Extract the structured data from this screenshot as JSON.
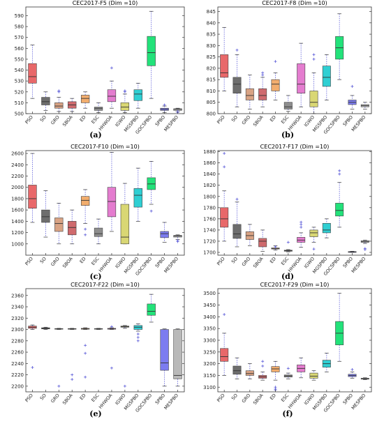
{
  "chart_data": [
    {
      "type": "box",
      "title": "CEC2017-F5 (Dim =10)",
      "sublabel": "(a)",
      "categories": [
        "PSO",
        "SO",
        "GRO",
        "SBOA",
        "ED",
        "ESC",
        "HHWOA",
        "IGWO",
        "MGSPBO",
        "GOCSPBO",
        "SPBO",
        "MESPBO"
      ],
      "colors": [
        "#e8686a",
        "#6e6e6e",
        "#d9a384",
        "#cf6a6e",
        "#f2ad6e",
        "#8e8e8e",
        "#e47ccf",
        "#d9d774",
        "#2fcfd3",
        "#22e27a",
        "#7c7cf0",
        "#b9b9b9"
      ],
      "ylim": [
        500,
        598
      ],
      "yticks": [
        500,
        510,
        520,
        530,
        540,
        550,
        560,
        570,
        580,
        590
      ],
      "boxes": [
        {
          "q1": 528,
          "median": 534,
          "q3": 546,
          "wlo": 514,
          "whi": 563,
          "outliers": []
        },
        {
          "q1": 508,
          "median": 511,
          "q3": 515,
          "wlo": 503,
          "whi": 520,
          "outliers": []
        },
        {
          "q1": 505,
          "median": 507,
          "q3": 510,
          "wlo": 502,
          "whi": 515,
          "outliers": [
            520,
            521
          ]
        },
        {
          "q1": 505,
          "median": 508,
          "q3": 511,
          "wlo": 502,
          "whi": 514,
          "outliers": []
        },
        {
          "q1": 510,
          "median": 514,
          "q3": 517,
          "wlo": 505,
          "whi": 520,
          "outliers": []
        },
        {
          "q1": 503,
          "median": 505,
          "q3": 506,
          "wlo": 501,
          "whi": 510,
          "outliers": []
        },
        {
          "q1": 511,
          "median": 516,
          "q3": 522,
          "wlo": 505,
          "whi": 530,
          "outliers": [
            542
          ]
        },
        {
          "q1": 503,
          "median": 506,
          "q3": 510,
          "wlo": 501,
          "whi": 518,
          "outliers": [
            520,
            521
          ]
        },
        {
          "q1": 512,
          "median": 518,
          "q3": 522,
          "wlo": 505,
          "whi": 528,
          "outliers": []
        },
        {
          "q1": 544,
          "median": 556,
          "q3": 571,
          "wlo": 514,
          "whi": 594,
          "outliers": []
        },
        {
          "q1": 503,
          "median": 504,
          "q3": 505,
          "wlo": 501,
          "whi": 507,
          "outliers": [
            508
          ]
        },
        {
          "q1": 503,
          "median": 504,
          "q3": 504.5,
          "wlo": 502,
          "whi": 505,
          "outliers": [
            501,
            502
          ]
        }
      ]
    },
    {
      "type": "box",
      "title": "CEC2017-F8 (Dim =10)",
      "sublabel": "(b)",
      "categories": [
        "PSO",
        "SO",
        "GRO",
        "SBOA",
        "ED",
        "ESC",
        "HHWOA",
        "IGWO",
        "MGSPBO",
        "GOCSPBO",
        "SPBO",
        "MESPBO"
      ],
      "colors": [
        "#e8686a",
        "#6e6e6e",
        "#d9a384",
        "#cf6a6e",
        "#f2ad6e",
        "#8e8e8e",
        "#e47ccf",
        "#d9d774",
        "#2fcfd3",
        "#22e27a",
        "#7c7cf0",
        "#b9b9b9"
      ],
      "ylim": [
        800,
        847
      ],
      "yticks": [
        800,
        805,
        810,
        815,
        820,
        825,
        830,
        835,
        840,
        845
      ],
      "boxes": [
        {
          "q1": 816,
          "median": 818,
          "q3": 826,
          "wlo": 810,
          "whi": 838,
          "outliers": []
        },
        {
          "q1": 809,
          "median": 813,
          "q3": 816,
          "wlo": 803,
          "whi": 826,
          "outliers": [
            828
          ]
        },
        {
          "q1": 806,
          "median": 808,
          "q3": 811,
          "wlo": 802,
          "whi": 817,
          "outliers": []
        },
        {
          "q1": 806,
          "median": 808,
          "q3": 811,
          "wlo": 803,
          "whi": 816,
          "outliers": [
            817,
            818
          ]
        },
        {
          "q1": 810,
          "median": 813,
          "q3": 815,
          "wlo": 806,
          "whi": 818,
          "outliers": [
            823
          ]
        },
        {
          "q1": 802,
          "median": 803,
          "q3": 805,
          "wlo": 801,
          "whi": 808,
          "outliers": []
        },
        {
          "q1": 809,
          "median": 813,
          "q3": 822,
          "wlo": 803,
          "whi": 831,
          "outliers": []
        },
        {
          "q1": 803,
          "median": 805,
          "q3": 810,
          "wlo": 800,
          "whi": 818,
          "outliers": [
            824,
            826
          ]
        },
        {
          "q1": 812,
          "median": 816,
          "q3": 821,
          "wlo": 806,
          "whi": 826,
          "outliers": []
        },
        {
          "q1": 824,
          "median": 829,
          "q3": 834,
          "wlo": 815,
          "whi": 844,
          "outliers": []
        },
        {
          "q1": 804,
          "median": 805,
          "q3": 806,
          "wlo": 802,
          "whi": 808,
          "outliers": [
            812
          ]
        },
        {
          "q1": 803,
          "median": 803.5,
          "q3": 804,
          "wlo": 802,
          "whi": 805,
          "outliers": []
        }
      ]
    },
    {
      "type": "box",
      "title": "CEC2017-F10 (Dim =10)",
      "sublabel": "(c)",
      "categories": [
        "PSO",
        "SO",
        "GRO",
        "SBOA",
        "ED",
        "ESC",
        "HHWOA",
        "IGWO",
        "MGSPBO",
        "GOCSPBO",
        "SPBO",
        "MESPBO"
      ],
      "colors": [
        "#e8686a",
        "#6e6e6e",
        "#d9a384",
        "#cf6a6e",
        "#f2ad6e",
        "#8e8e8e",
        "#e47ccf",
        "#d9d774",
        "#2fcfd3",
        "#22e27a",
        "#7c7cf0",
        "#b9b9b9"
      ],
      "ylim": [
        800,
        2650
      ],
      "yticks": [
        1000,
        1200,
        1400,
        1600,
        1800,
        2000,
        2200,
        2400,
        2600
      ],
      "boxes": [
        {
          "q1": 1630,
          "median": 1800,
          "q3": 2040,
          "wlo": 1380,
          "whi": 2600,
          "outliers": []
        },
        {
          "q1": 1380,
          "median": 1480,
          "q3": 1600,
          "wlo": 1120,
          "whi": 1940,
          "outliers": []
        },
        {
          "q1": 1220,
          "median": 1360,
          "q3": 1460,
          "wlo": 1000,
          "whi": 1720,
          "outliers": []
        },
        {
          "q1": 1160,
          "median": 1290,
          "q3": 1400,
          "wlo": 1000,
          "whi": 1600,
          "outliers": []
        },
        {
          "q1": 1680,
          "median": 1770,
          "q3": 1840,
          "wlo": 1360,
          "whi": 1960,
          "outliers": [
            1160,
            1260
          ]
        },
        {
          "q1": 1130,
          "median": 1180,
          "q3": 1280,
          "wlo": 1000,
          "whi": 1440,
          "outliers": []
        },
        {
          "q1": 1480,
          "median": 1750,
          "q3": 2000,
          "wlo": 1220,
          "whi": 2620,
          "outliers": []
        },
        {
          "q1": 1000,
          "median": 1120,
          "q3": 1700,
          "wlo": 1000,
          "whi": 2070,
          "outliers": []
        },
        {
          "q1": 1650,
          "median": 1860,
          "q3": 1980,
          "wlo": 1400,
          "whi": 2340,
          "outliers": []
        },
        {
          "q1": 1960,
          "median": 2060,
          "q3": 2170,
          "wlo": 1700,
          "whi": 2460,
          "outliers": [
            1580
          ]
        },
        {
          "q1": 1110,
          "median": 1180,
          "q3": 1220,
          "wlo": 1030,
          "whi": 1380,
          "outliers": []
        },
        {
          "q1": 1120,
          "median": 1140,
          "q3": 1150,
          "wlo": 1080,
          "whi": 1160,
          "outliers": [
            1040,
            1060
          ]
        }
      ]
    },
    {
      "type": "box",
      "title": "CEC2017-F17 (Dim =10)",
      "sublabel": "(d)",
      "categories": [
        "PSO",
        "SO",
        "GRO",
        "SBOA",
        "ED",
        "ESC",
        "HHWOA",
        "IGWO",
        "MGSPBO",
        "GOCSPBO",
        "SPBO",
        "MESPBO"
      ],
      "colors": [
        "#e8686a",
        "#6e6e6e",
        "#d9a384",
        "#cf6a6e",
        "#f2ad6e",
        "#8e8e8e",
        "#e47ccf",
        "#d9d774",
        "#2fcfd3",
        "#22e27a",
        "#7c7cf0",
        "#b9b9b9"
      ],
      "ylim": [
        1695,
        1882
      ],
      "yticks": [
        1700,
        1720,
        1740,
        1760,
        1780,
        1800,
        1820,
        1840,
        1860,
        1880
      ],
      "boxes": [
        {
          "q1": 1745,
          "median": 1760,
          "q3": 1780,
          "wlo": 1720,
          "whi": 1810,
          "outliers": [
            1853,
            1877
          ]
        },
        {
          "q1": 1725,
          "median": 1733,
          "q3": 1750,
          "wlo": 1710,
          "whi": 1790,
          "outliers": [
            1795
          ]
        },
        {
          "q1": 1723,
          "median": 1730,
          "q3": 1737,
          "wlo": 1712,
          "whi": 1750,
          "outliers": []
        },
        {
          "q1": 1710,
          "median": 1720,
          "q3": 1725,
          "wlo": 1702,
          "whi": 1740,
          "outliers": []
        },
        {
          "q1": 1706,
          "median": 1707,
          "q3": 1708,
          "wlo": 1704,
          "whi": 1712,
          "outliers": [
            1710
          ]
        },
        {
          "q1": 1702,
          "median": 1703,
          "q3": 1704,
          "wlo": 1701,
          "whi": 1705,
          "outliers": [
            1718
          ]
        },
        {
          "q1": 1718,
          "median": 1722,
          "q3": 1727,
          "wlo": 1709,
          "whi": 1735,
          "outliers": [
            1745,
            1750,
            1754
          ]
        },
        {
          "q1": 1728,
          "median": 1735,
          "q3": 1740,
          "wlo": 1718,
          "whi": 1745,
          "outliers": [
            1706
          ]
        },
        {
          "q1": 1735,
          "median": 1740,
          "q3": 1752,
          "wlo": 1726,
          "whi": 1760,
          "outliers": []
        },
        {
          "q1": 1765,
          "median": 1775,
          "q3": 1788,
          "wlo": 1745,
          "whi": 1825,
          "outliers": [
            1840,
            1846
          ]
        },
        {
          "q1": 1700,
          "median": 1701,
          "q3": 1701.5,
          "wlo": 1700,
          "whi": 1702,
          "outliers": []
        },
        {
          "q1": 1718,
          "median": 1719,
          "q3": 1721,
          "wlo": 1716,
          "whi": 1722,
          "outliers": [
            1705,
            1707
          ]
        }
      ]
    },
    {
      "type": "box",
      "title": "CEC2017-F22 (Dim =10)",
      "sublabel": "(e)",
      "categories": [
        "PSO",
        "SO",
        "GRO",
        "SBOA",
        "ED",
        "ESC",
        "HHWOA",
        "IGWO",
        "MGSPBO",
        "GOCSPBO",
        "SPBO",
        "MESPBO"
      ],
      "colors": [
        "#e8686a",
        "#6e6e6e",
        "#d9a384",
        "#cf6a6e",
        "#f2ad6e",
        "#8e8e8e",
        "#e47ccf",
        "#d9d774",
        "#2fcfd3",
        "#22e27a",
        "#7c7cf0",
        "#b9b9b9"
      ],
      "ylim": [
        2190,
        2372
      ],
      "yticks": [
        2200,
        2220,
        2240,
        2260,
        2280,
        2300,
        2320,
        2340,
        2360
      ],
      "boxes": [
        {
          "q1": 2302,
          "median": 2304,
          "q3": 2306,
          "wlo": 2300,
          "whi": 2308,
          "outliers": [
            2233
          ]
        },
        {
          "q1": 2301,
          "median": 2302,
          "q3": 2303,
          "wlo": 2300,
          "whi": 2304,
          "outliers": []
        },
        {
          "q1": 2300.5,
          "median": 2301,
          "q3": 2301.5,
          "wlo": 2300,
          "whi": 2302,
          "outliers": [
            2200
          ]
        },
        {
          "q1": 2300.5,
          "median": 2301,
          "q3": 2301.5,
          "wlo": 2300,
          "whi": 2302,
          "outliers": [
            2220,
            2212
          ]
        },
        {
          "q1": 2300.5,
          "median": 2301,
          "q3": 2302,
          "wlo": 2300,
          "whi": 2303,
          "outliers": [
            2272,
            2258,
            2216
          ]
        },
        {
          "q1": 2300.5,
          "median": 2301,
          "q3": 2301.5,
          "wlo": 2300,
          "whi": 2302,
          "outliers": []
        },
        {
          "q1": 2300.5,
          "median": 2301,
          "q3": 2302,
          "wlo": 2300,
          "whi": 2303,
          "outliers": [
            2305,
            2232
          ]
        },
        {
          "q1": 2304,
          "median": 2305,
          "q3": 2306,
          "wlo": 2302,
          "whi": 2307,
          "outliers": [
            2200
          ]
        },
        {
          "q1": 2300,
          "median": 2304,
          "q3": 2307,
          "wlo": 2297,
          "whi": 2310,
          "outliers": [
            2292,
            2286,
            2280
          ]
        },
        {
          "q1": 2325,
          "median": 2332,
          "q3": 2345,
          "wlo": 2313,
          "whi": 2362,
          "outliers": []
        },
        {
          "q1": 2228,
          "median": 2241,
          "q3": 2300,
          "wlo": 2200,
          "whi": 2301,
          "outliers": []
        },
        {
          "q1": 2213,
          "median": 2219,
          "q3": 2300,
          "wlo": 2200,
          "whi": 2301,
          "outliers": []
        }
      ]
    },
    {
      "type": "box",
      "title": "CEC2017-F29 (Dim =10)",
      "sublabel": "(f)",
      "categories": [
        "PSO",
        "SO",
        "GRO",
        "SBOA",
        "ED",
        "ESC",
        "HHWOA",
        "IGWO",
        "MGSPBO",
        "GOCSPBO",
        "SPBO",
        "MESPBO"
      ],
      "colors": [
        "#e8686a",
        "#6e6e6e",
        "#d9a384",
        "#cf6a6e",
        "#f2ad6e",
        "#8e8e8e",
        "#e47ccf",
        "#d9d774",
        "#2fcfd3",
        "#22e27a",
        "#7c7cf0",
        "#b9b9b9"
      ],
      "ylim": [
        3080,
        3520
      ],
      "yticks": [
        3100,
        3150,
        3200,
        3250,
        3300,
        3350,
        3400,
        3450,
        3500
      ],
      "boxes": [
        {
          "q1": 3210,
          "median": 3230,
          "q3": 3265,
          "wlo": 3150,
          "whi": 3330,
          "outliers": [
            3410
          ]
        },
        {
          "q1": 3155,
          "median": 3170,
          "q3": 3190,
          "wlo": 3135,
          "whi": 3225,
          "outliers": []
        },
        {
          "q1": 3150,
          "median": 3158,
          "q3": 3170,
          "wlo": 3135,
          "whi": 3200,
          "outliers": []
        },
        {
          "q1": 3138,
          "median": 3144,
          "q3": 3150,
          "wlo": 3130,
          "whi": 3165,
          "outliers": [
            3190,
            3210
          ]
        },
        {
          "q1": 3165,
          "median": 3178,
          "q3": 3188,
          "wlo": 3130,
          "whi": 3210,
          "outliers": [
            3100,
            3092,
            3088
          ]
        },
        {
          "q1": 3143,
          "median": 3148,
          "q3": 3152,
          "wlo": 3135,
          "whi": 3160,
          "outliers": [
            3180
          ]
        },
        {
          "q1": 3165,
          "median": 3180,
          "q3": 3195,
          "wlo": 3140,
          "whi": 3225,
          "outliers": []
        },
        {
          "q1": 3138,
          "median": 3147,
          "q3": 3160,
          "wlo": 3130,
          "whi": 3170,
          "outliers": []
        },
        {
          "q1": 3185,
          "median": 3200,
          "q3": 3215,
          "wlo": 3165,
          "whi": 3245,
          "outliers": []
        },
        {
          "q1": 3280,
          "median": 3330,
          "q3": 3380,
          "wlo": 3210,
          "whi": 3500,
          "outliers": []
        },
        {
          "q1": 3145,
          "median": 3150,
          "q3": 3155,
          "wlo": 3138,
          "whi": 3165,
          "outliers": [
            3175
          ]
        },
        {
          "q1": 3134,
          "median": 3136,
          "q3": 3138,
          "wlo": 3132,
          "whi": 3140,
          "outliers": []
        }
      ]
    }
  ]
}
